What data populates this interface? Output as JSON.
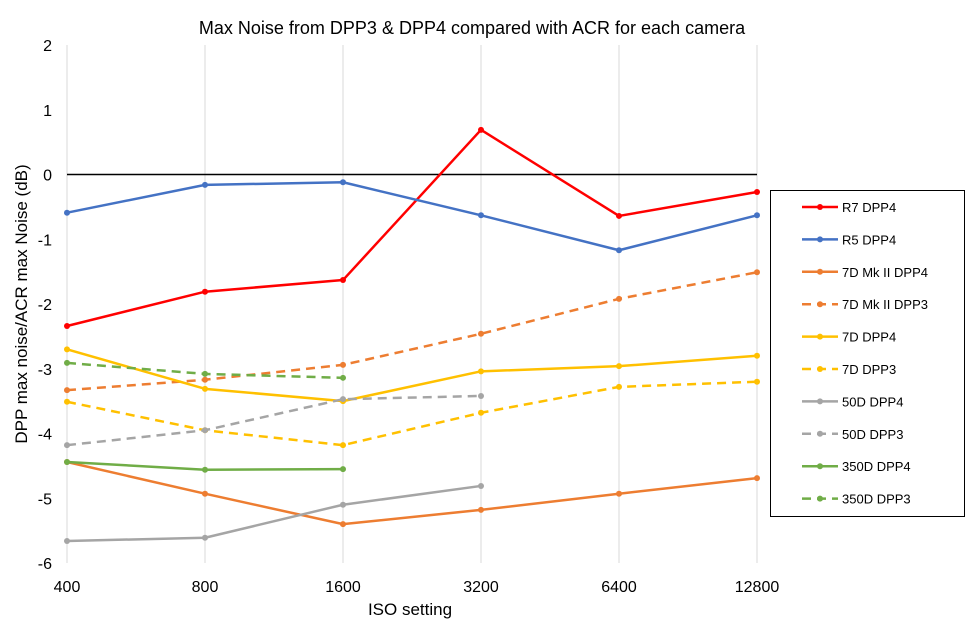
{
  "chart_data": {
    "type": "line",
    "title": "Max Noise from DPP3 & DPP4 compared with ACR for each camera",
    "xlabel": "ISO setting",
    "ylabel": "DPP max noise/ACR max Noise (dB)",
    "categories": [
      "400",
      "800",
      "1600",
      "3200",
      "6400",
      "12800"
    ],
    "ylim": [
      -6,
      2
    ],
    "yticks": [
      "2",
      "1",
      "0",
      "-1",
      "-2",
      "-3",
      "-4",
      "-5",
      "-6"
    ],
    "grid": "vertical",
    "reference_line": 0,
    "legend_position": "right",
    "series": [
      {
        "name": "R7 DPP4",
        "color": "#FF0000",
        "dashed": false,
        "values": [
          -2.34,
          -1.81,
          -1.63,
          0.69,
          -0.64,
          -0.27
        ]
      },
      {
        "name": "R5 DPP4",
        "color": "#4472C4",
        "dashed": false,
        "values": [
          -0.59,
          -0.16,
          -0.12,
          -0.63,
          -1.17,
          -0.63
        ]
      },
      {
        "name": "7D Mk II DPP4",
        "color": "#ED7D31",
        "dashed": false,
        "values": [
          -4.44,
          -4.93,
          -5.4,
          -5.18,
          -4.93,
          -4.69
        ]
      },
      {
        "name": "7D Mk II DPP3",
        "color": "#ED7D31",
        "dashed": true,
        "values": [
          -3.33,
          -3.17,
          -2.94,
          -2.46,
          -1.92,
          -1.51
        ]
      },
      {
        "name": "7D DPP4",
        "color": "#FFC000",
        "dashed": false,
        "values": [
          -2.7,
          -3.31,
          -3.5,
          -3.04,
          -2.96,
          -2.8
        ]
      },
      {
        "name": "7D DPP3",
        "color": "#FFC000",
        "dashed": true,
        "values": [
          -3.51,
          -3.95,
          -4.18,
          -3.68,
          -3.28,
          -3.2
        ]
      },
      {
        "name": "50D DPP4",
        "color": "#A5A5A5",
        "dashed": false,
        "values": [
          -5.66,
          -5.61,
          -5.1,
          -4.81,
          null,
          null
        ]
      },
      {
        "name": "50D DPP3",
        "color": "#A5A5A5",
        "dashed": true,
        "values": [
          -4.18,
          -3.95,
          -3.47,
          -3.42,
          null,
          null
        ]
      },
      {
        "name": "350D DPP4",
        "color": "#70AD47",
        "dashed": false,
        "values": [
          -4.44,
          -4.56,
          -4.55,
          null,
          null,
          null
        ]
      },
      {
        "name": "350D DPP3",
        "color": "#70AD47",
        "dashed": true,
        "values": [
          -2.91,
          -3.08,
          -3.14,
          null,
          null,
          null
        ]
      }
    ]
  }
}
